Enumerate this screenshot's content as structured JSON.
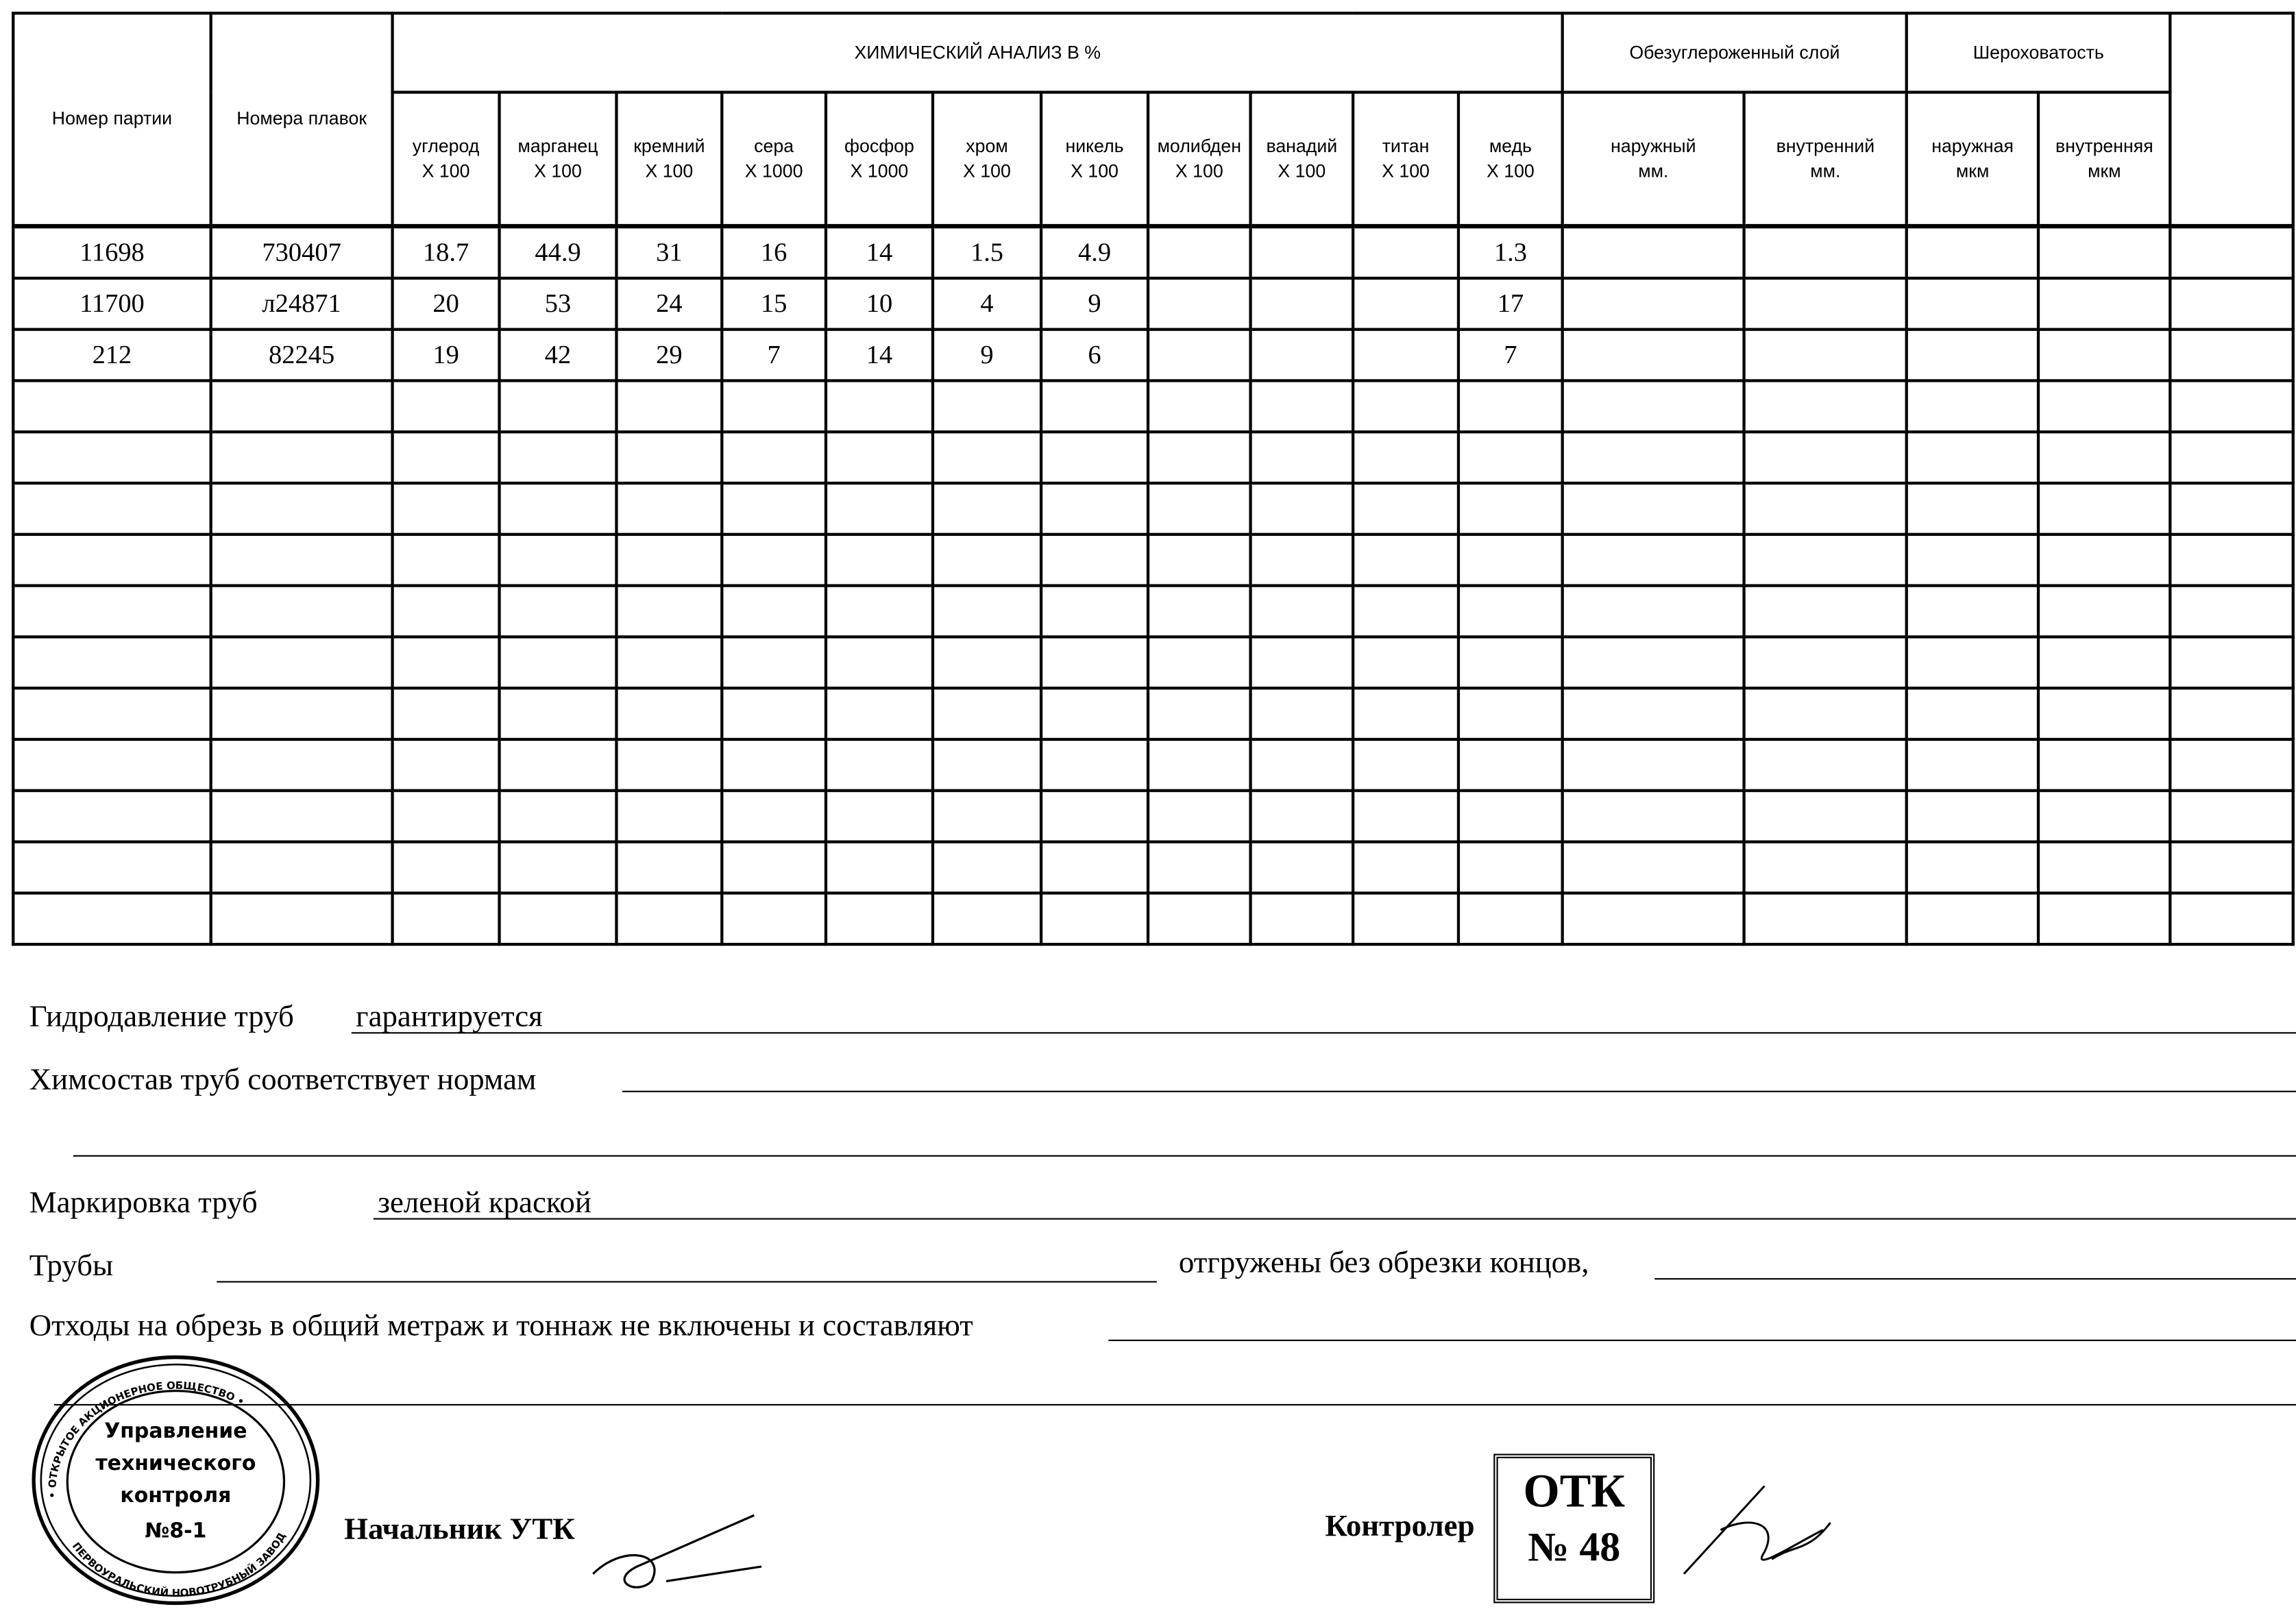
{
  "table": {
    "headers": {
      "batch": "Номер партии",
      "heats": "Номера плавок",
      "chem_group": "ХИМИЧЕСКИЙ АНАЛИЗ  В  %",
      "decarb_group": "Обезуглероженный слой",
      "rough_group": "Шероховатость",
      "chem_cols": [
        {
          "name": "углерод",
          "mult": "Х 100"
        },
        {
          "name": "марганец",
          "mult": "Х 100"
        },
        {
          "name": "кремний",
          "mult": "Х 100"
        },
        {
          "name": "сера",
          "mult": "Х 1000"
        },
        {
          "name": "фосфор",
          "mult": "Х 1000"
        },
        {
          "name": "хром",
          "mult": "Х 100"
        },
        {
          "name": "никель",
          "mult": "Х 100"
        },
        {
          "name": "молибден",
          "mult": "Х 100"
        },
        {
          "name": "ванадий",
          "mult": "Х 100"
        },
        {
          "name": "титан",
          "mult": "Х 100"
        },
        {
          "name": "медь",
          "mult": "Х 100"
        }
      ],
      "decarb_cols": [
        {
          "name": "наружный",
          "unit": "мм."
        },
        {
          "name": "внутренний",
          "unit": "мм."
        }
      ],
      "rough_cols": [
        {
          "name": "наружная",
          "unit": "мкм"
        },
        {
          "name": "внутренняя",
          "unit": "мкм"
        }
      ]
    },
    "rows": [
      [
        "11698",
        "730407",
        "18.7",
        "44.9",
        "31",
        "16",
        "14",
        "1.5",
        "4.9",
        "",
        "",
        "",
        "1.3",
        "",
        "",
        "",
        "",
        ""
      ],
      [
        "11700",
        "л24871",
        "20",
        "53",
        "24",
        "15",
        "10",
        "4",
        "9",
        "",
        "",
        "",
        "17",
        "",
        "",
        "",
        "",
        ""
      ],
      [
        "212",
        "82245",
        "19",
        "42",
        "29",
        "7",
        "14",
        "9",
        "6",
        "",
        "",
        "",
        "7",
        "",
        "",
        "",
        "",
        ""
      ],
      [
        "",
        "",
        "",
        "",
        "",
        "",
        "",
        "",
        "",
        "",
        "",
        "",
        "",
        "",
        "",
        "",
        "",
        ""
      ],
      [
        "",
        "",
        "",
        "",
        "",
        "",
        "",
        "",
        "",
        "",
        "",
        "",
        "",
        "",
        "",
        "",
        "",
        ""
      ],
      [
        "",
        "",
        "",
        "",
        "",
        "",
        "",
        "",
        "",
        "",
        "",
        "",
        "",
        "",
        "",
        "",
        "",
        ""
      ],
      [
        "",
        "",
        "",
        "",
        "",
        "",
        "",
        "",
        "",
        "",
        "",
        "",
        "",
        "",
        "",
        "",
        "",
        ""
      ],
      [
        "",
        "",
        "",
        "",
        "",
        "",
        "",
        "",
        "",
        "",
        "",
        "",
        "",
        "",
        "",
        "",
        "",
        ""
      ],
      [
        "",
        "",
        "",
        "",
        "",
        "",
        "",
        "",
        "",
        "",
        "",
        "",
        "",
        "",
        "",
        "",
        "",
        ""
      ],
      [
        "",
        "",
        "",
        "",
        "",
        "",
        "",
        "",
        "",
        "",
        "",
        "",
        "",
        "",
        "",
        "",
        "",
        ""
      ],
      [
        "",
        "",
        "",
        "",
        "",
        "",
        "",
        "",
        "",
        "",
        "",
        "",
        "",
        "",
        "",
        "",
        "",
        ""
      ],
      [
        "",
        "",
        "",
        "",
        "",
        "",
        "",
        "",
        "",
        "",
        "",
        "",
        "",
        "",
        "",
        "",
        "",
        ""
      ],
      [
        "",
        "",
        "",
        "",
        "",
        "",
        "",
        "",
        "",
        "",
        "",
        "",
        "",
        "",
        "",
        "",
        "",
        ""
      ],
      [
        "",
        "",
        "",
        "",
        "",
        "",
        "",
        "",
        "",
        "",
        "",
        "",
        "",
        "",
        "",
        "",
        "",
        ""
      ]
    ]
  },
  "fields": {
    "hydro_label": "Гидродавление труб",
    "hydro_value": "гарантируется",
    "chem_label": "Химсостав труб соответствует нормам",
    "marking_label": "Маркировка труб",
    "marking_value": "зеленой краской",
    "pipes_label": "Трубы",
    "shipped_label": "отгружены без обрезки концов,",
    "waste_label": "Отходы на обрезь в общий метраж и тоннаж не включены и составляют"
  },
  "signatures": {
    "chief_label": "Начальник УТК",
    "controller_label": "Контролер",
    "stamp_round": {
      "outer": "ОТКРЫТОЕ АКЦИОНЕРНОЕ ОБЩЕСТВО · ПЕРВОУРАЛЬСКИЙ НОВОТРУБНЫЙ ЗАВОД",
      "inner": [
        "Управление",
        "технического",
        "контроля",
        "№8-1"
      ]
    },
    "stamp_otk": {
      "line1": "ОТК",
      "line2": "№ 48"
    }
  }
}
